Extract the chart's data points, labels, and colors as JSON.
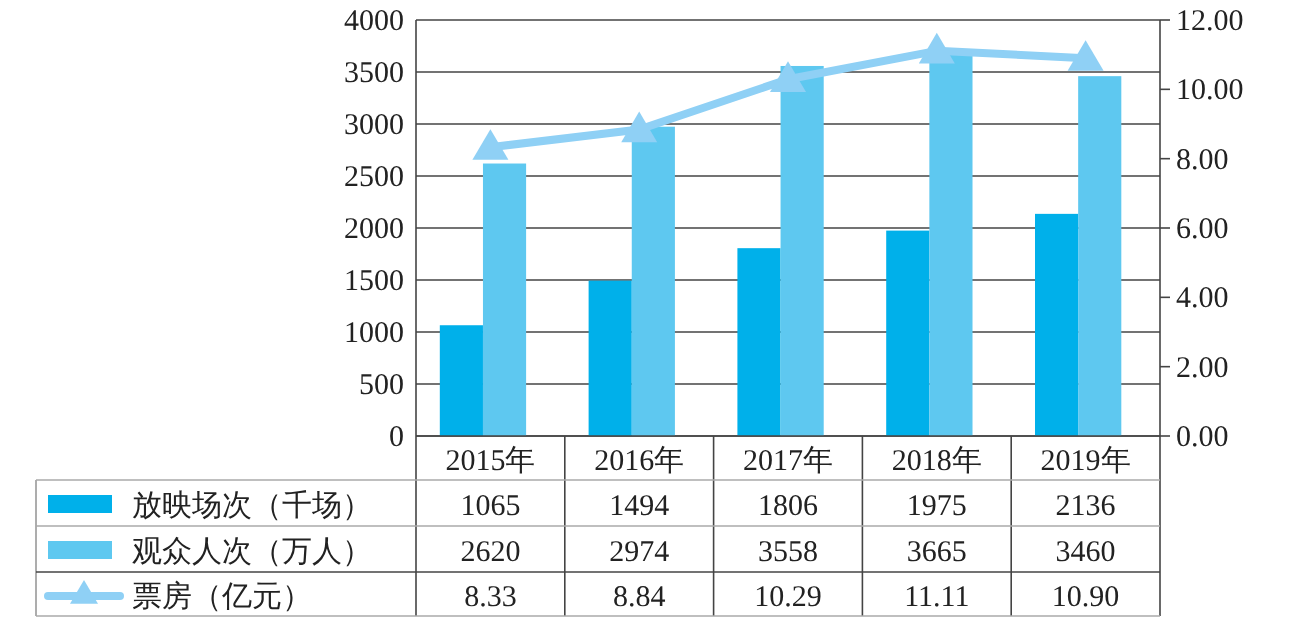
{
  "chart_data": {
    "type": "bar",
    "categories": [
      "2015年",
      "2016年",
      "2017年",
      "2018年",
      "2019年"
    ],
    "series": [
      {
        "name": "放映场次（千场）",
        "color": "#00b0ea",
        "values": [
          1065,
          1494,
          1806,
          1975,
          2136
        ],
        "value_labels": [
          "1065",
          "1494",
          "1806",
          "1975",
          "2136"
        ]
      },
      {
        "name": "观众人次（万人）",
        "color": "#5ec8f0",
        "values": [
          2620,
          2974,
          3558,
          3665,
          3460
        ],
        "value_labels": [
          "2620",
          "2974",
          "3558",
          "3665",
          "3460"
        ]
      },
      {
        "name": "票房（亿元）",
        "type": "line",
        "axis": "y2",
        "marker": "triangle",
        "color": "#8fd0f5",
        "values": [
          8.33,
          8.84,
          10.29,
          11.11,
          10.9
        ],
        "value_labels": [
          "8.33",
          "8.84",
          "10.29",
          "11.11",
          "10.90"
        ]
      }
    ],
    "ylim": [
      0,
      4000
    ],
    "yticks": [
      0,
      500,
      1000,
      1500,
      2000,
      2500,
      3000,
      3500,
      4000
    ],
    "y2lim": [
      0,
      12
    ],
    "y2ticks": [
      {
        "value": 0,
        "label": "0.00"
      },
      {
        "value": 2,
        "label": "2.00"
      },
      {
        "value": 4,
        "label": "4.00"
      },
      {
        "value": 6,
        "label": "6.00"
      },
      {
        "value": 8,
        "label": "8.00"
      },
      {
        "value": 10,
        "label": "10.00"
      },
      {
        "value": 12,
        "label": "12.00"
      }
    ],
    "grid": "y",
    "legend": "bottom"
  }
}
